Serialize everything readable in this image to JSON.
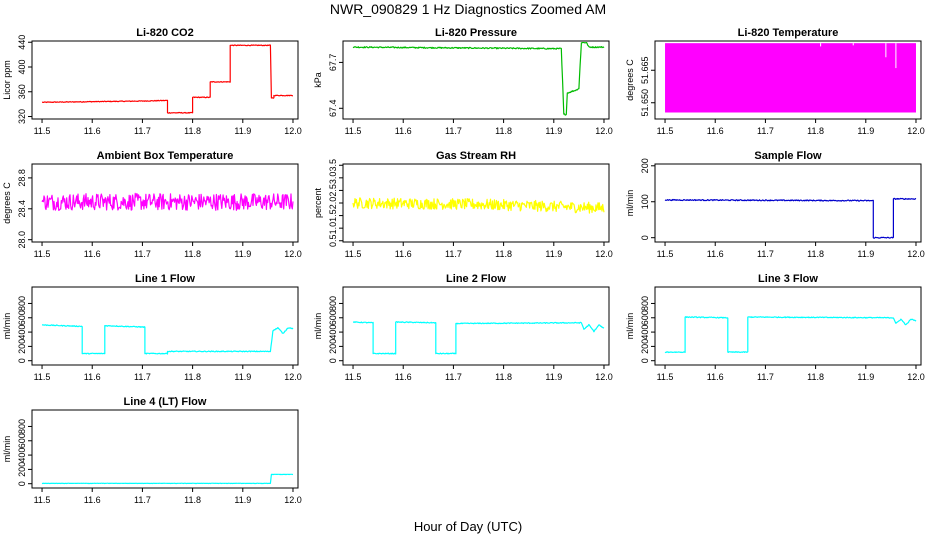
{
  "figure": {
    "title": "NWR_090829  1 Hz Diagnostics Zoomed AM",
    "xlabel": "Hour of Day (UTC)"
  },
  "chart_data": [
    {
      "id": "co2",
      "type": "line",
      "title": "Li-820 CO2",
      "ylabel": "Licor ppm",
      "color": "#ff0000",
      "noise": 0.6,
      "xlim": [
        11.48,
        12.01
      ],
      "ylim": [
        316,
        442
      ],
      "xticks": [
        11.5,
        11.6,
        11.7,
        11.8,
        11.9,
        12.0
      ],
      "yticks": [
        {
          "v": 320,
          "label": "320"
        },
        {
          "v": 360,
          "label": "360"
        },
        {
          "v": 400,
          "label": "400"
        },
        {
          "v": 440,
          "label": "440"
        }
      ],
      "series": [
        {
          "points": [
            [
              11.5,
              343
            ],
            [
              11.6,
              344
            ],
            [
              11.7,
              345
            ],
            [
              11.75,
              346
            ],
            [
              11.75,
              326
            ],
            [
              11.8,
              326
            ],
            [
              11.8,
              351
            ],
            [
              11.835,
              351
            ],
            [
              11.835,
              376
            ],
            [
              11.875,
              376
            ],
            [
              11.875,
              435
            ],
            [
              11.955,
              435
            ],
            [
              11.957,
              350
            ],
            [
              11.962,
              350
            ],
            [
              11.962,
              354
            ],
            [
              12.0,
              354
            ]
          ]
        }
      ]
    },
    {
      "id": "pressure",
      "type": "line",
      "title": "Li-820 Pressure",
      "ylabel": "kPa",
      "color": "#00bb00",
      "noise": 0.004,
      "xlim": [
        11.48,
        12.01
      ],
      "ylim": [
        67.33,
        67.84
      ],
      "xticks": [
        11.5,
        11.6,
        11.7,
        11.8,
        11.9,
        12.0
      ],
      "yticks": [
        {
          "v": 67.4,
          "label": "67.4"
        },
        {
          "v": 67.7,
          "label": "67.7"
        }
      ],
      "series": [
        {
          "points": [
            [
              11.5,
              67.8
            ],
            [
              11.9,
              67.79
            ],
            [
              11.915,
              67.79
            ],
            [
              11.92,
              67.36
            ],
            [
              11.925,
              67.36
            ],
            [
              11.927,
              67.5
            ],
            [
              11.945,
              67.52
            ],
            [
              11.95,
              67.53
            ],
            [
              11.955,
              67.83
            ],
            [
              11.965,
              67.83
            ],
            [
              11.97,
              67.8
            ],
            [
              12.0,
              67.8
            ]
          ]
        }
      ]
    },
    {
      "id": "licortemp",
      "type": "area",
      "title": "Li-820 Temperature",
      "ylabel": "degrees C",
      "color": "#ff00ff",
      "noise": 0,
      "xlim": [
        11.48,
        12.01
      ],
      "ylim": [
        51.6425,
        51.6785
      ],
      "xticks": [
        11.5,
        11.6,
        11.7,
        11.8,
        11.9,
        12.0
      ],
      "yticks": [
        {
          "v": 51.65,
          "label": "51.650"
        },
        {
          "v": 51.665,
          "label": "51.665"
        }
      ],
      "series": [
        {
          "points": [
            [
              11.5,
              51.6775
            ],
            [
              12.0,
              51.6775
            ]
          ],
          "baseline": 51.6455
        }
      ]
    },
    {
      "id": "ambient",
      "type": "line",
      "title": "Ambient Box Temperature",
      "ylabel": "degrees C",
      "color": "#ff00ff",
      "noise": 0.11,
      "xlim": [
        11.48,
        12.01
      ],
      "ylim": [
        27.97,
        28.98
      ],
      "xticks": [
        11.5,
        11.6,
        11.7,
        11.8,
        11.9,
        12.0
      ],
      "yticks": [
        {
          "v": 28.0,
          "label": "28.0"
        },
        {
          "v": 28.4,
          "label": "28.4"
        },
        {
          "v": 28.8,
          "label": "28.8"
        }
      ],
      "series": [
        {
          "points": [
            [
              11.5,
              28.49
            ],
            [
              12.0,
              28.49
            ]
          ]
        }
      ]
    },
    {
      "id": "rh",
      "type": "line",
      "title": "Gas Stream RH",
      "ylabel": "percent",
      "color": "#ffff00",
      "noise": 0.22,
      "xlim": [
        11.48,
        12.01
      ],
      "ylim": [
        0.45,
        3.55
      ],
      "xticks": [
        11.5,
        11.6,
        11.7,
        11.8,
        11.9,
        12.0
      ],
      "yticks": [
        {
          "v": 0.5,
          "label": "0.5"
        },
        {
          "v": 1.0,
          "label": "1.0"
        },
        {
          "v": 1.5,
          "label": "1.5"
        },
        {
          "v": 2.0,
          "label": "2.0"
        },
        {
          "v": 2.5,
          "label": "2.5"
        },
        {
          "v": 3.0,
          "label": "3.0"
        },
        {
          "v": 3.5,
          "label": "3.5"
        }
      ],
      "series": [
        {
          "points": [
            [
              11.5,
              2.0
            ],
            [
              11.75,
              1.95
            ],
            [
              12.0,
              1.8
            ]
          ]
        }
      ]
    },
    {
      "id": "sample",
      "type": "line",
      "title": "Sample Flow",
      "ylabel": "ml/min",
      "color": "#0000cc",
      "noise": 1.5,
      "xlim": [
        11.48,
        12.01
      ],
      "ylim": [
        -12,
        205
      ],
      "xticks": [
        11.5,
        11.6,
        11.7,
        11.8,
        11.9,
        12.0
      ],
      "yticks": [
        {
          "v": 0,
          "label": "0"
        },
        {
          "v": 100,
          "label": "100"
        },
        {
          "v": 200,
          "label": "200"
        }
      ],
      "series": [
        {
          "points": [
            [
              11.5,
              105
            ],
            [
              11.915,
              103
            ],
            [
              11.915,
              0
            ],
            [
              11.955,
              0
            ],
            [
              11.955,
              108
            ],
            [
              12.0,
              108
            ]
          ]
        }
      ]
    },
    {
      "id": "line1",
      "type": "line",
      "title": "Line 1 Flow",
      "ylabel": "ml/min",
      "color": "#00ffff",
      "noise": 6,
      "xlim": [
        11.48,
        12.01
      ],
      "ylim": [
        -60,
        1030
      ],
      "xticks": [
        11.5,
        11.6,
        11.7,
        11.8,
        11.9,
        12.0
      ],
      "yticks": [
        {
          "v": 0,
          "label": "0"
        },
        {
          "v": 200,
          "label": "200"
        },
        {
          "v": 400,
          "label": "400"
        },
        {
          "v": 600,
          "label": "600"
        },
        {
          "v": 800,
          "label": "800"
        }
      ],
      "series": [
        {
          "points": [
            [
              11.5,
              500
            ],
            [
              11.58,
              480
            ],
            [
              11.58,
              100
            ],
            [
              11.625,
              100
            ],
            [
              11.625,
              490
            ],
            [
              11.705,
              470
            ],
            [
              11.705,
              100
            ],
            [
              11.75,
              100
            ],
            [
              11.75,
              130
            ],
            [
              11.955,
              130
            ],
            [
              11.96,
              420
            ],
            [
              11.97,
              460
            ],
            [
              11.98,
              380
            ],
            [
              11.99,
              460
            ],
            [
              12.0,
              450
            ]
          ]
        }
      ]
    },
    {
      "id": "line2",
      "type": "line",
      "title": "Line 2 Flow",
      "ylabel": "ml/min",
      "color": "#00ffff",
      "noise": 6,
      "xlim": [
        11.48,
        12.01
      ],
      "ylim": [
        -60,
        1030
      ],
      "xticks": [
        11.5,
        11.6,
        11.7,
        11.8,
        11.9,
        12.0
      ],
      "yticks": [
        {
          "v": 0,
          "label": "0"
        },
        {
          "v": 200,
          "label": "200"
        },
        {
          "v": 400,
          "label": "400"
        },
        {
          "v": 600,
          "label": "600"
        },
        {
          "v": 800,
          "label": "800"
        }
      ],
      "series": [
        {
          "points": [
            [
              11.5,
              540
            ],
            [
              11.54,
              530
            ],
            [
              11.54,
              100
            ],
            [
              11.585,
              100
            ],
            [
              11.585,
              540
            ],
            [
              11.665,
              530
            ],
            [
              11.665,
              100
            ],
            [
              11.705,
              100
            ],
            [
              11.705,
              520
            ],
            [
              11.955,
              530
            ],
            [
              11.96,
              440
            ],
            [
              11.97,
              500
            ],
            [
              11.98,
              410
            ],
            [
              11.99,
              500
            ],
            [
              12.0,
              450
            ]
          ]
        }
      ]
    },
    {
      "id": "line3",
      "type": "line",
      "title": "Line 3 Flow",
      "ylabel": "ml/min",
      "color": "#00ffff",
      "noise": 6,
      "xlim": [
        11.48,
        12.01
      ],
      "ylim": [
        -60,
        1030
      ],
      "xticks": [
        11.5,
        11.6,
        11.7,
        11.8,
        11.9,
        12.0
      ],
      "yticks": [
        {
          "v": 0,
          "label": "0"
        },
        {
          "v": 200,
          "label": "200"
        },
        {
          "v": 400,
          "label": "400"
        },
        {
          "v": 600,
          "label": "600"
        },
        {
          "v": 800,
          "label": "800"
        }
      ],
      "series": [
        {
          "points": [
            [
              11.5,
              120
            ],
            [
              11.54,
              120
            ],
            [
              11.54,
              610
            ],
            [
              11.625,
              600
            ],
            [
              11.625,
              120
            ],
            [
              11.665,
              120
            ],
            [
              11.665,
              610
            ],
            [
              11.955,
              600
            ],
            [
              11.96,
              520
            ],
            [
              11.97,
              580
            ],
            [
              11.98,
              500
            ],
            [
              11.99,
              580
            ],
            [
              12.0,
              560
            ]
          ]
        }
      ]
    },
    {
      "id": "line4",
      "type": "line",
      "title": "Line 4 (LT) Flow",
      "ylabel": "ml/min",
      "color": "#00ffff",
      "noise": 2,
      "xlim": [
        11.48,
        12.01
      ],
      "ylim": [
        -60,
        1030
      ],
      "xticks": [
        11.5,
        11.6,
        11.7,
        11.8,
        11.9,
        12.0
      ],
      "yticks": [
        {
          "v": 0,
          "label": "0"
        },
        {
          "v": 200,
          "label": "200"
        },
        {
          "v": 400,
          "label": "400"
        },
        {
          "v": 600,
          "label": "600"
        },
        {
          "v": 800,
          "label": "800"
        }
      ],
      "series": [
        {
          "points": [
            [
              11.5,
              5
            ],
            [
              11.955,
              5
            ],
            [
              11.957,
              130
            ],
            [
              12.0,
              130
            ]
          ]
        }
      ]
    }
  ]
}
